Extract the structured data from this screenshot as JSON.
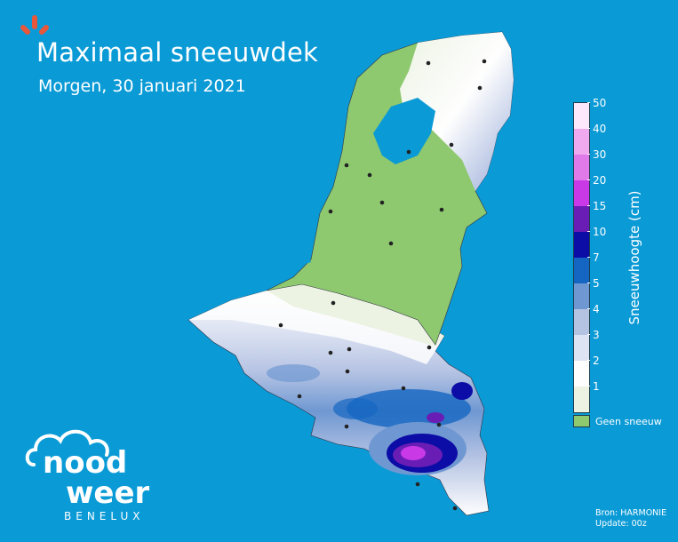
{
  "header": {
    "title": "Maximaal sneeuwdek",
    "subtitle": "Morgen, 30 januari 2021"
  },
  "legend": {
    "axis_label": "Sneeuwhoogte (cm)",
    "ticks": [
      "50",
      "40",
      "30",
      "20",
      "15",
      "10",
      "7",
      "5",
      "4",
      "3",
      "2",
      "1"
    ],
    "colors": [
      "#fde8fb",
      "#f0a8ef",
      "#e07ae8",
      "#c93ae6",
      "#6a1db5",
      "#0c0ca6",
      "#1566c2",
      "#6f98d2",
      "#b5c3e3",
      "#dde3f2",
      "#fefefe",
      "#ecf3e3"
    ],
    "no_snow_label": "Geen sneeuw",
    "no_snow_color": "#8ec86f"
  },
  "logo": {
    "line1": "nood",
    "line2": "weer",
    "tagline": "BENELUX"
  },
  "footer": {
    "source": "Bron: HARMONIE",
    "update": "Update: 00z"
  }
}
